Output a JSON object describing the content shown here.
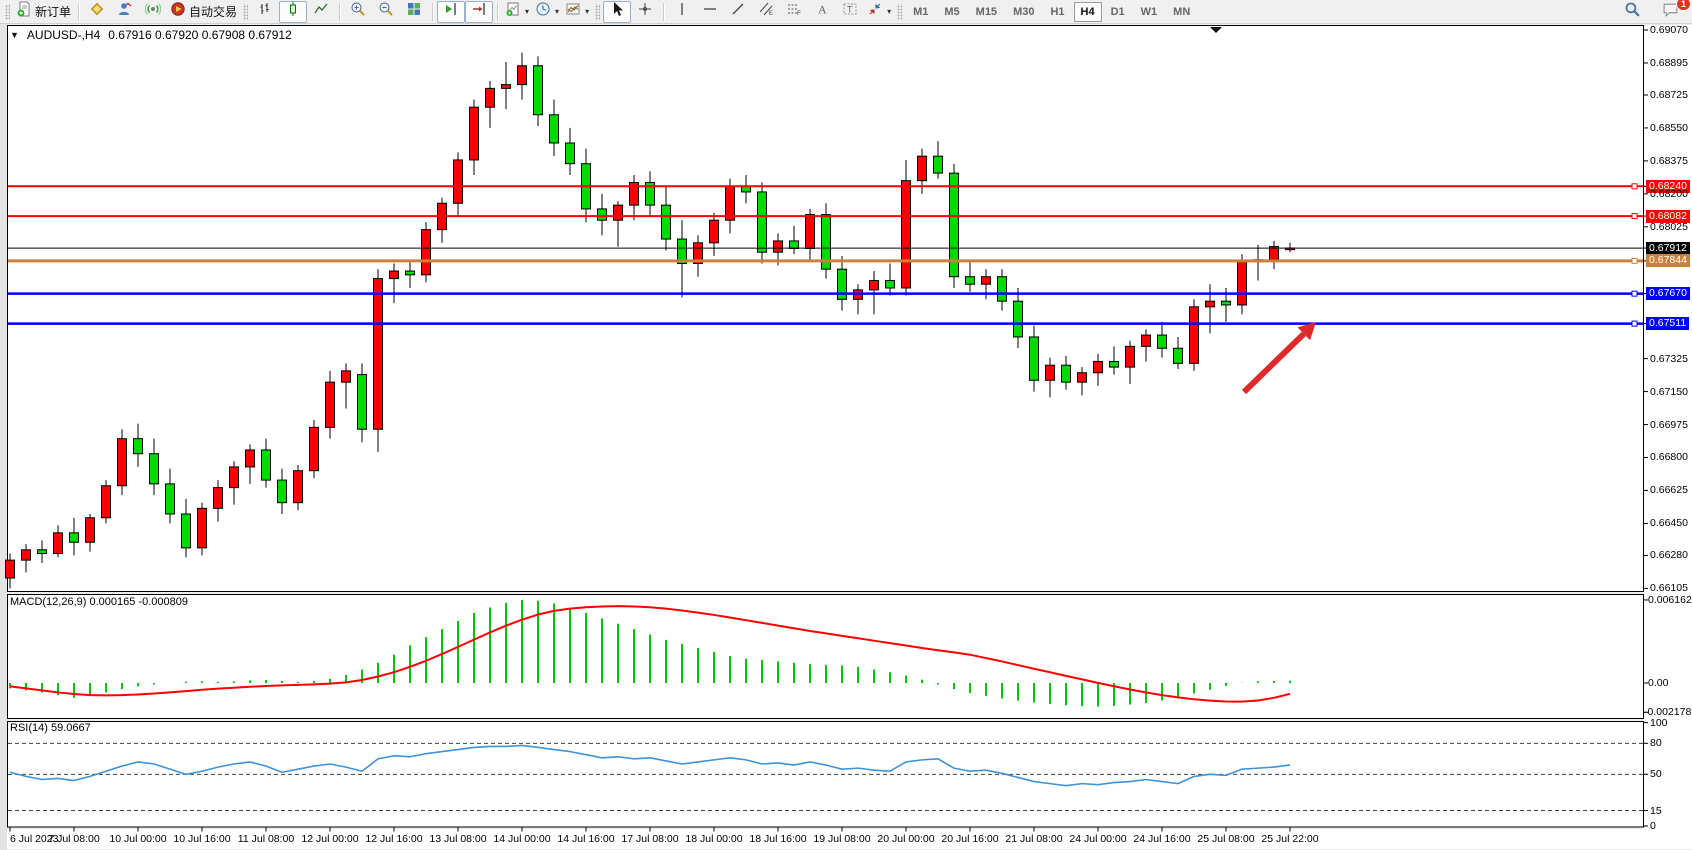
{
  "toolbar": {
    "new_order_label": "新订单",
    "auto_trading_label": "自动交易",
    "timeframes": [
      "M1",
      "M5",
      "M15",
      "M30",
      "H1",
      "H4",
      "D1",
      "W1",
      "MN"
    ],
    "active_timeframe": "H4",
    "notification_badge": "1"
  },
  "title": {
    "symbol": "AUDUSD-,H4",
    "ohlc": "0.67916 0.67920 0.67908 0.67912"
  },
  "indicators": {
    "macd_label": "MACD(12,26,9) 0.000165 -0.000809",
    "rsi_label": "RSI(14) 59.0667"
  },
  "chart_data": {
    "type": "candlestick",
    "title": "AUDUSD-,H4",
    "ylim": [
      0.66105,
      0.6907
    ],
    "price_ticks": [
      "0.69070",
      "0.68895",
      "0.68725",
      "0.68550",
      "0.68375",
      "0.68200",
      "0.68025",
      "0.67325",
      "0.67150",
      "0.66975",
      "0.66800",
      "0.66625",
      "0.66450",
      "0.66280",
      "0.66105"
    ],
    "time_labels": [
      "6 Jul 2023",
      "7 Jul 08:00",
      "10 Jul 00:00",
      "10 Jul 16:00",
      "11 Jul 08:00",
      "12 Jul 00:00",
      "12 Jul 16:00",
      "13 Jul 08:00",
      "14 Jul 00:00",
      "14 Jul 16:00",
      "17 Jul 08:00",
      "18 Jul 00:00",
      "18 Jul 16:00",
      "19 Jul 08:00",
      "20 Jul 00:00",
      "20 Jul 16:00",
      "21 Jul 08:00",
      "24 Jul 00:00",
      "24 Jul 16:00",
      "25 Jul 08:00",
      "25 Jul 22:00"
    ],
    "current_price": "0.67912",
    "hlines": [
      {
        "price": 0.6824,
        "label": "0.68240",
        "color": "#ff0000",
        "width": 2,
        "handle": true
      },
      {
        "price": 0.68082,
        "label": "0.68082",
        "color": "#ff0000",
        "width": 2,
        "handle": true
      },
      {
        "price": 0.67912,
        "label": "0.67912",
        "color": "#000000",
        "width": 1,
        "handle": false
      },
      {
        "price": 0.67844,
        "label": "0.67844",
        "color": "#c9813b",
        "width": 3,
        "handle": true
      },
      {
        "price": 0.6767,
        "label": "0.67670",
        "color": "#0000ff",
        "width": 2.5,
        "handle": true
      },
      {
        "price": 0.67511,
        "label": "0.67511",
        "color": "#0000ff",
        "width": 2.5,
        "handle": true
      }
    ],
    "candles": [
      [
        0.6616,
        0.6629,
        0.66105,
        0.66255
      ],
      [
        0.66255,
        0.6634,
        0.6619,
        0.6631
      ],
      [
        0.6631,
        0.6636,
        0.6624,
        0.6629
      ],
      [
        0.6629,
        0.6644,
        0.6627,
        0.664
      ],
      [
        0.664,
        0.6648,
        0.6628,
        0.6635
      ],
      [
        0.6635,
        0.665,
        0.663,
        0.6648
      ],
      [
        0.6648,
        0.6668,
        0.6645,
        0.6665
      ],
      [
        0.6665,
        0.6695,
        0.666,
        0.669
      ],
      [
        0.669,
        0.6698,
        0.6675,
        0.6682
      ],
      [
        0.6682,
        0.669,
        0.666,
        0.6666
      ],
      [
        0.6666,
        0.6674,
        0.6645,
        0.665
      ],
      [
        0.665,
        0.6658,
        0.6627,
        0.6632
      ],
      [
        0.6632,
        0.6656,
        0.6628,
        0.6653
      ],
      [
        0.6653,
        0.6668,
        0.6646,
        0.6664
      ],
      [
        0.6664,
        0.6678,
        0.6655,
        0.6675
      ],
      [
        0.6675,
        0.6687,
        0.6666,
        0.6684
      ],
      [
        0.6684,
        0.669,
        0.6664,
        0.6668
      ],
      [
        0.6668,
        0.6674,
        0.665,
        0.6656
      ],
      [
        0.6656,
        0.6676,
        0.6652,
        0.6673
      ],
      [
        0.6673,
        0.67,
        0.6669,
        0.6696
      ],
      [
        0.6696,
        0.6726,
        0.669,
        0.672
      ],
      [
        0.672,
        0.673,
        0.6706,
        0.6726
      ],
      [
        0.6724,
        0.673,
        0.6688,
        0.6695
      ],
      [
        0.6695,
        0.678,
        0.6683,
        0.6775
      ],
      [
        0.6775,
        0.6783,
        0.6762,
        0.6779
      ],
      [
        0.6779,
        0.6785,
        0.677,
        0.6777
      ],
      [
        0.6777,
        0.6805,
        0.6773,
        0.6801
      ],
      [
        0.6801,
        0.6818,
        0.6794,
        0.6815
      ],
      [
        0.6815,
        0.6842,
        0.6808,
        0.6838
      ],
      [
        0.6838,
        0.687,
        0.683,
        0.6866
      ],
      [
        0.6866,
        0.688,
        0.6855,
        0.6876
      ],
      [
        0.6876,
        0.689,
        0.6865,
        0.6878
      ],
      [
        0.6878,
        0.6895,
        0.687,
        0.6888
      ],
      [
        0.6888,
        0.6893,
        0.6856,
        0.6862
      ],
      [
        0.6862,
        0.687,
        0.684,
        0.6847
      ],
      [
        0.6847,
        0.6855,
        0.683,
        0.6836
      ],
      [
        0.6836,
        0.6844,
        0.6805,
        0.6812
      ],
      [
        0.6812,
        0.682,
        0.6798,
        0.6806
      ],
      [
        0.6806,
        0.6816,
        0.6792,
        0.6814
      ],
      [
        0.6814,
        0.683,
        0.6806,
        0.6826
      ],
      [
        0.6826,
        0.6832,
        0.6808,
        0.6814
      ],
      [
        0.6814,
        0.6824,
        0.679,
        0.6796
      ],
      [
        0.6796,
        0.6806,
        0.6765,
        0.6783
      ],
      [
        0.6783,
        0.6798,
        0.6776,
        0.6794
      ],
      [
        0.6794,
        0.681,
        0.6787,
        0.6806
      ],
      [
        0.6806,
        0.6828,
        0.6799,
        0.6824
      ],
      [
        0.6824,
        0.683,
        0.6815,
        0.6821
      ],
      [
        0.6821,
        0.6826,
        0.6783,
        0.6789
      ],
      [
        0.6789,
        0.6799,
        0.6782,
        0.6795
      ],
      [
        0.6795,
        0.6803,
        0.6788,
        0.6791
      ],
      [
        0.6791,
        0.6812,
        0.6785,
        0.6809
      ],
      [
        0.6809,
        0.6815,
        0.6775,
        0.678
      ],
      [
        0.678,
        0.6787,
        0.6758,
        0.6764
      ],
      [
        0.6764,
        0.6772,
        0.6756,
        0.6769
      ],
      [
        0.6769,
        0.6779,
        0.6756,
        0.6774
      ],
      [
        0.6774,
        0.6783,
        0.6766,
        0.677
      ],
      [
        0.677,
        0.6838,
        0.6766,
        0.6827
      ],
      [
        0.6827,
        0.6844,
        0.682,
        0.684
      ],
      [
        0.684,
        0.6848,
        0.6828,
        0.6831
      ],
      [
        0.6831,
        0.6836,
        0.677,
        0.6776
      ],
      [
        0.6776,
        0.6784,
        0.6768,
        0.6772
      ],
      [
        0.6772,
        0.678,
        0.6764,
        0.6776
      ],
      [
        0.6776,
        0.678,
        0.6758,
        0.6763
      ],
      [
        0.6763,
        0.677,
        0.6738,
        0.6744
      ],
      [
        0.6744,
        0.675,
        0.6715,
        0.6721
      ],
      [
        0.6721,
        0.6733,
        0.6712,
        0.6729
      ],
      [
        0.6729,
        0.6734,
        0.6716,
        0.672
      ],
      [
        0.672,
        0.6728,
        0.6713,
        0.6725
      ],
      [
        0.6725,
        0.6735,
        0.6718,
        0.6731
      ],
      [
        0.6731,
        0.6739,
        0.6724,
        0.6728
      ],
      [
        0.6728,
        0.6742,
        0.6719,
        0.6739
      ],
      [
        0.6739,
        0.6748,
        0.6731,
        0.6745
      ],
      [
        0.6745,
        0.6752,
        0.6733,
        0.6738
      ],
      [
        0.6738,
        0.6744,
        0.6727,
        0.673
      ],
      [
        0.673,
        0.6764,
        0.6726,
        0.676
      ],
      [
        0.676,
        0.6772,
        0.6746,
        0.6763
      ],
      [
        0.6763,
        0.677,
        0.6752,
        0.6761
      ],
      [
        0.6761,
        0.6788,
        0.6756,
        0.6784
      ],
      [
        0.6784,
        0.6793,
        0.6774,
        0.6785
      ],
      [
        0.6785,
        0.6795,
        0.678,
        0.6792
      ],
      [
        0.6791,
        0.6794,
        0.6789,
        0.67912
      ]
    ],
    "macd": {
      "params": "12,26,9",
      "ticks": [
        "0.006162",
        "0.00",
        "-0.002178"
      ],
      "tick_values": [
        0.006162,
        0,
        -0.002178
      ],
      "ylim": [
        -0.002178,
        0.006162
      ],
      "histogram": [
        -0.0004,
        -0.00055,
        -0.0007,
        -0.0009,
        -0.0011,
        -0.00095,
        -0.0007,
        -0.00045,
        -0.00025,
        -0.0001,
        0.0,
        0.0001,
        0.00012,
        8e-05,
        0.00012,
        0.0002,
        0.00022,
        0.00015,
        8e-05,
        0.00015,
        0.0003,
        0.0006,
        0.001,
        0.0015,
        0.0021,
        0.0028,
        0.0034,
        0.004,
        0.0046,
        0.0052,
        0.0056,
        0.00595,
        0.00616,
        0.0061,
        0.0059,
        0.0056,
        0.0052,
        0.0048,
        0.0044,
        0.004,
        0.0036,
        0.0032,
        0.0029,
        0.0026,
        0.0023,
        0.002,
        0.0018,
        0.0017,
        0.0016,
        0.0015,
        0.0014,
        0.00132,
        0.0013,
        0.0012,
        0.001,
        0.0008,
        0.00055,
        0.00025,
        -0.0001,
        -0.00045,
        -0.00075,
        -0.00095,
        -0.00115,
        -0.0013,
        -0.00145,
        -0.00155,
        -0.00165,
        -0.00172,
        -0.00175,
        -0.0017,
        -0.0016,
        -0.00148,
        -0.0013,
        -0.00105,
        -0.00078,
        -0.0005,
        -0.00022,
        2e-05,
        0.00012,
        0.00015,
        0.000165
      ],
      "signal": [
        -0.00025,
        -0.0004,
        -0.00055,
        -0.0007,
        -0.00082,
        -0.0009,
        -0.00092,
        -0.0009,
        -0.00085,
        -0.00078,
        -0.0007,
        -0.0006,
        -0.0005,
        -0.00042,
        -0.00035,
        -0.00028,
        -0.00022,
        -0.00018,
        -0.00014,
        -0.0001,
        -5e-05,
        5e-05,
        0.00022,
        0.00048,
        0.0008,
        0.0012,
        0.00165,
        0.00215,
        0.00268,
        0.00322,
        0.00375,
        0.00425,
        0.0047,
        0.00508,
        0.00535,
        0.00552,
        0.00562,
        0.00568,
        0.0057,
        0.00568,
        0.00562,
        0.00552,
        0.00538,
        0.00522,
        0.00505,
        0.00486,
        0.00466,
        0.00446,
        0.00426,
        0.00406,
        0.00386,
        0.00368,
        0.0035,
        0.00332,
        0.00314,
        0.00296,
        0.00278,
        0.0026,
        0.00243,
        0.00227,
        0.0021,
        0.00185,
        0.0016,
        0.00133,
        0.00106,
        0.0008,
        0.00053,
        0.00027,
        1e-05,
        -0.00024,
        -0.00048,
        -0.0007,
        -0.0009,
        -0.00107,
        -0.00121,
        -0.00131,
        -0.00137,
        -0.00138,
        -0.0013,
        -0.0011,
        -0.000809
      ]
    },
    "rsi": {
      "period": 14,
      "value": 59.0667,
      "ticks": [
        "100",
        "80",
        "50",
        "15",
        "0"
      ],
      "tick_values": [
        100,
        80,
        50,
        15,
        0
      ],
      "levels": [
        80,
        50,
        15
      ],
      "values": [
        52,
        48,
        45,
        46,
        44,
        48,
        53,
        58,
        62,
        60,
        55,
        50,
        53,
        57,
        60,
        62,
        58,
        52,
        55,
        58,
        60,
        57,
        53,
        65,
        68,
        67,
        70,
        72,
        74,
        76,
        77,
        77,
        78,
        76,
        74,
        72,
        69,
        66,
        67,
        65,
        66,
        63,
        60,
        62,
        64,
        66,
        64,
        60,
        61,
        59,
        62,
        59,
        55,
        56,
        54,
        53,
        62,
        64,
        65,
        56,
        53,
        54,
        51,
        47,
        43,
        41,
        39,
        41,
        40,
        42,
        43,
        45,
        43,
        41,
        48,
        50,
        49,
        55,
        56,
        57,
        59.07
      ]
    },
    "annotation_arrow": {
      "from": [
        1244,
        392
      ],
      "to": [
        1316,
        322
      ],
      "color": "#dd2a2a"
    }
  },
  "colors": {
    "bull": "#ff0000",
    "bear": "#00d800",
    "macd_hist": "#00c800",
    "macd_signal": "#ff0000",
    "rsi_line": "#4092d8"
  }
}
